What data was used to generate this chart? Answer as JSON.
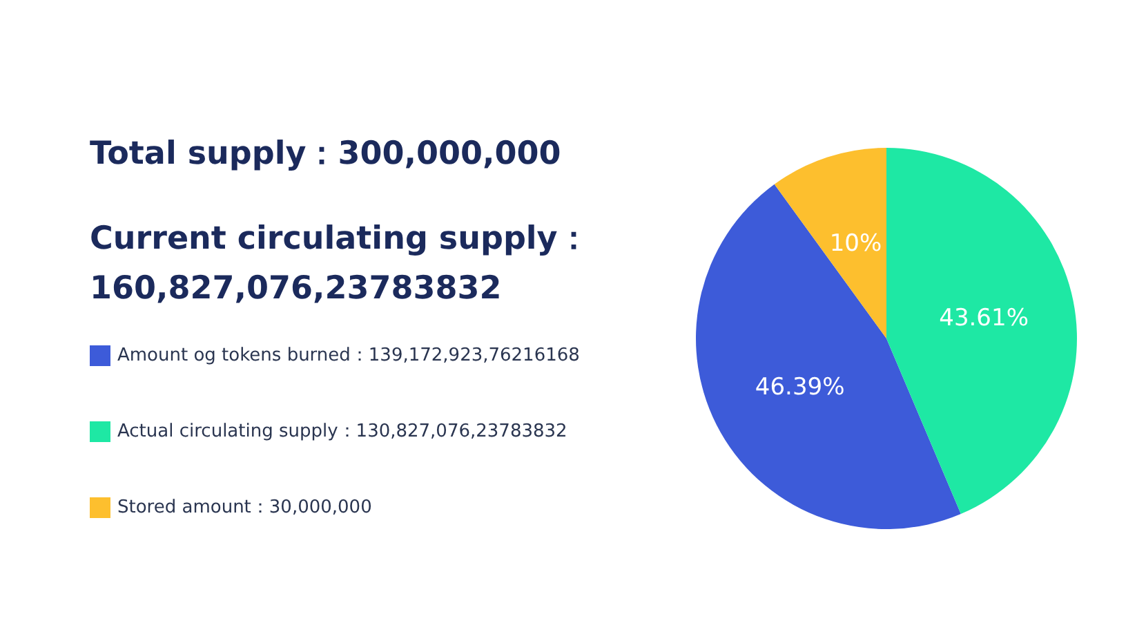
{
  "chart_data": {
    "type": "pie",
    "title": "Total supply：300,000,000",
    "subtitle": "Current circulating supply：\n160,827,076,23783832",
    "categories": [
      "Amount og tokens burned：139,172,923,76216168",
      "Actual circulating supply：130,827,076,23783832",
      "Stored amount：30,000,000"
    ],
    "values": [
      46.39,
      43.61,
      10
    ],
    "colors": [
      "#3d5bd9",
      "#1ee8a4",
      "#fdbf2e"
    ],
    "value_labels": [
      "46.39%",
      "43.61%",
      "10%"
    ],
    "legend": "left"
  }
}
